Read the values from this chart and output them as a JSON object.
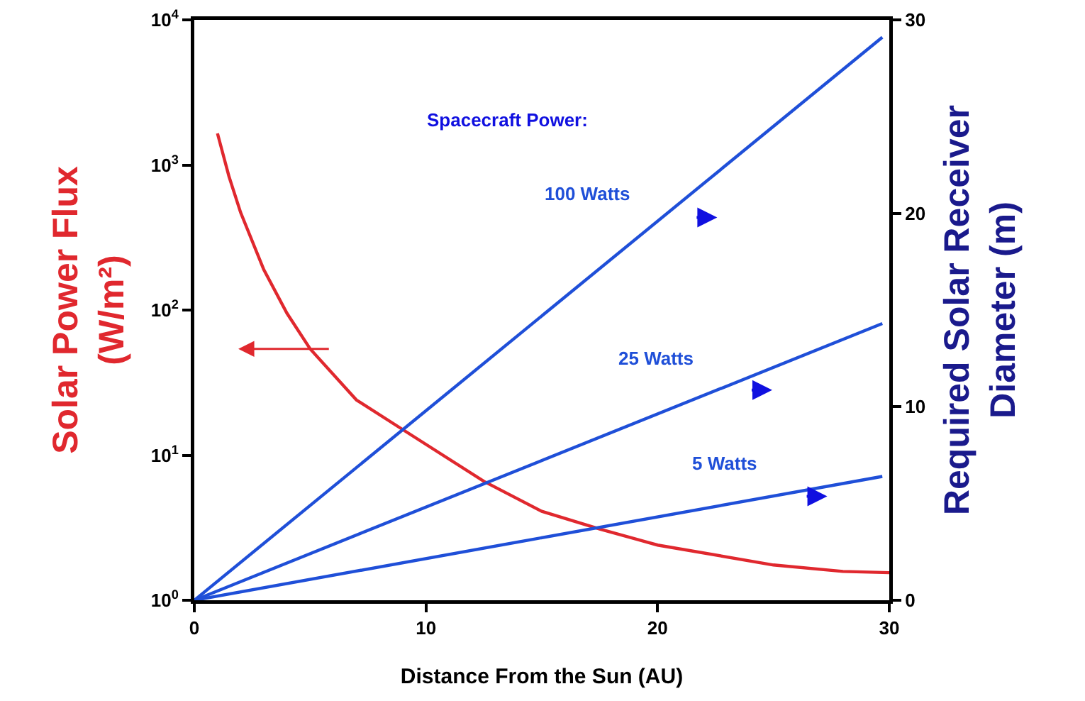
{
  "chart_data": {
    "type": "line",
    "xlabel": "Distance From the Sun (AU)",
    "ylabel": "Solar Power Flux\n(W/m²)",
    "y2label": "Required Solar Receiver\nDiameter (m)",
    "legend_title": "Spacecraft Power:",
    "xlim": [
      0,
      30
    ],
    "xticks": [
      0,
      10,
      20,
      30
    ],
    "ylim": [
      1,
      10000
    ],
    "log": "y",
    "yticks": [
      {
        "value": 1,
        "label": "10$^{0}$"
      },
      {
        "value": 10,
        "label": "10$^{1}$"
      },
      {
        "value": 100,
        "label": "10$^{2}$"
      },
      {
        "value": 1000,
        "label": "10$^{3}$"
      },
      {
        "value": 10000,
        "label": "10$^{4}$"
      }
    ],
    "y2lim": [
      0,
      30
    ],
    "y2ticks": [
      0,
      10,
      20,
      30
    ],
    "grid": false,
    "legend": false,
    "marker": "none",
    "line_style": "solid",
    "series": [
      {
        "color": "#e0282e",
        "x": [
          1,
          1.5,
          2,
          3,
          4,
          5,
          7,
          9,
          12.5,
          15,
          17.5,
          20,
          25,
          28,
          30
        ],
        "values": [
          1650,
          830,
          470,
          190,
          95,
          54,
          24,
          15,
          6.6,
          4.1,
          3.1,
          2.4,
          1.75,
          1.58,
          1.55
        ]
      },
      {
        "name": "100 Watts",
        "color": "#1f4fd8",
        "axis": "y2",
        "x": [
          0,
          29.7
        ],
        "values": [
          0,
          29.1
        ]
      },
      {
        "name": "25 Watts",
        "color": "#1f4fd8",
        "axis": "y2",
        "x": [
          0,
          29.7
        ],
        "values": [
          0,
          14.3
        ]
      },
      {
        "name": "5 Watts",
        "color": "#1f4fd8",
        "axis": "y2",
        "x": [
          0,
          29.7
        ],
        "values": [
          0,
          6.4
        ]
      }
    ]
  }
}
